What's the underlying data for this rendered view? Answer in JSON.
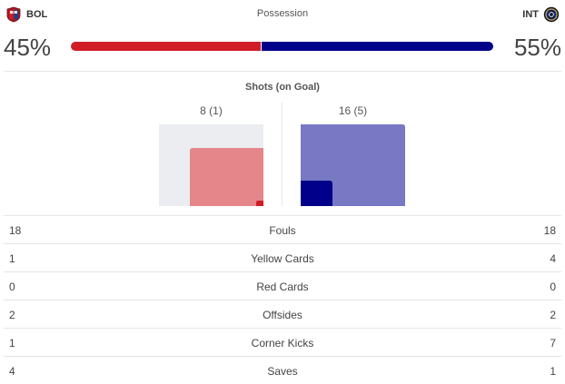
{
  "teams": {
    "home": {
      "abbr": "BOL",
      "color": "#d11d26",
      "crest_icon": "bologna-crest-icon"
    },
    "away": {
      "abbr": "INT",
      "color": "#00008b",
      "crest_icon": "inter-crest-icon"
    }
  },
  "possession": {
    "title": "Possession",
    "home_pct": "45%",
    "away_pct": "55%",
    "home_value": 45,
    "away_value": 55
  },
  "shots": {
    "title": "Shots (on Goal)",
    "home_label": "8 (1)",
    "away_label": "16 (5)",
    "home_total": 8,
    "home_on_goal": 1,
    "away_total": 16,
    "away_on_goal": 5,
    "max_total": 16,
    "colors": {
      "empty": "#ebedf0",
      "home_total": "#e5868b",
      "home_on_goal": "#d11d26",
      "away_total": "#7878c5",
      "away_on_goal": "#00008b"
    }
  },
  "stats": [
    {
      "label": "Fouls",
      "home": "18",
      "away": "18"
    },
    {
      "label": "Yellow Cards",
      "home": "1",
      "away": "4"
    },
    {
      "label": "Red Cards",
      "home": "0",
      "away": "0"
    },
    {
      "label": "Offsides",
      "home": "2",
      "away": "2"
    },
    {
      "label": "Corner Kicks",
      "home": "1",
      "away": "7"
    },
    {
      "label": "Saves",
      "home": "4",
      "away": "1"
    }
  ]
}
